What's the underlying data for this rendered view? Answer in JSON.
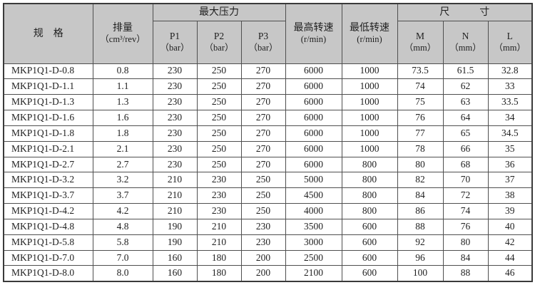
{
  "colors": {
    "header_bg": "#c7c7c7",
    "grid_border": "#4f4f4f",
    "outer_border": "#3a3a3a",
    "text": "#1f1f1f",
    "row_bg": "#ffffff"
  },
  "table": {
    "header": {
      "spec": "规　格",
      "displacement": {
        "line1": "排量",
        "line2": "（cm³/rev）"
      },
      "max_pressure_group": "最大压力",
      "p1": {
        "line1": "P1",
        "line2": "（bar）"
      },
      "p2": {
        "line1": "P2",
        "line2": "（bar）"
      },
      "p3": {
        "line1": "P3",
        "line2": "（bar）"
      },
      "max_speed": {
        "line1": "最高转速",
        "line2": "(r/min)"
      },
      "min_speed": {
        "line1": "最低转速",
        "line2": "(r/min)"
      },
      "dimensions_group": "尺　　　寸",
      "m": {
        "line1": "M",
        "line2": "（mm）"
      },
      "n": {
        "line1": "N",
        "line2": "（mm）"
      },
      "l": {
        "line1": "L",
        "line2": "（mm）"
      }
    },
    "column_order": [
      "spec",
      "displacement",
      "p1",
      "p2",
      "p3",
      "max_speed",
      "min_speed",
      "m",
      "n",
      "l"
    ],
    "rows": [
      {
        "spec": "MKP1Q1-D-0.8",
        "displacement": "0.8",
        "p1": "230",
        "p2": "250",
        "p3": "270",
        "max_speed": "6000",
        "min_speed": "1000",
        "m": "73.5",
        "n": "61.5",
        "l": "32.8"
      },
      {
        "spec": "MKP1Q1-D-1.1",
        "displacement": "1.1",
        "p1": "230",
        "p2": "250",
        "p3": "270",
        "max_speed": "6000",
        "min_speed": "1000",
        "m": "74",
        "n": "62",
        "l": "33"
      },
      {
        "spec": "MKP1Q1-D-1.3",
        "displacement": "1.3",
        "p1": "230",
        "p2": "250",
        "p3": "270",
        "max_speed": "6000",
        "min_speed": "1000",
        "m": "75",
        "n": "63",
        "l": "33.5"
      },
      {
        "spec": "MKP1Q1-D-1.6",
        "displacement": "1.6",
        "p1": "230",
        "p2": "250",
        "p3": "270",
        "max_speed": "6000",
        "min_speed": "1000",
        "m": "76",
        "n": "64",
        "l": "34"
      },
      {
        "spec": "MKP1Q1-D-1.8",
        "displacement": "1.8",
        "p1": "230",
        "p2": "250",
        "p3": "270",
        "max_speed": "6000",
        "min_speed": "1000",
        "m": "77",
        "n": "65",
        "l": "34.5"
      },
      {
        "spec": "MKP1Q1-D-2.1",
        "displacement": "2.1",
        "p1": "230",
        "p2": "250",
        "p3": "270",
        "max_speed": "6000",
        "min_speed": "1000",
        "m": "78",
        "n": "66",
        "l": "35"
      },
      {
        "spec": "MKP1Q1-D-2.7",
        "displacement": "2.7",
        "p1": "230",
        "p2": "250",
        "p3": "270",
        "max_speed": "6000",
        "min_speed": "800",
        "m": "80",
        "n": "68",
        "l": "36"
      },
      {
        "spec": "MKP1Q1-D-3.2",
        "displacement": "3.2",
        "p1": "210",
        "p2": "230",
        "p3": "250",
        "max_speed": "5000",
        "min_speed": "800",
        "m": "82",
        "n": "70",
        "l": "37"
      },
      {
        "spec": "MKP1Q1-D-3.7",
        "displacement": "3.7",
        "p1": "210",
        "p2": "230",
        "p3": "250",
        "max_speed": "4500",
        "min_speed": "800",
        "m": "84",
        "n": "72",
        "l": "38"
      },
      {
        "spec": "MKP1Q1-D-4.2",
        "displacement": "4.2",
        "p1": "210",
        "p2": "230",
        "p3": "250",
        "max_speed": "4000",
        "min_speed": "800",
        "m": "86",
        "n": "74",
        "l": "39"
      },
      {
        "spec": "MKP1Q1-D-4.8",
        "displacement": "4.8",
        "p1": "190",
        "p2": "210",
        "p3": "230",
        "max_speed": "3500",
        "min_speed": "600",
        "m": "88",
        "n": "76",
        "l": "40"
      },
      {
        "spec": "MKP1Q1-D-5.8",
        "displacement": "5.8",
        "p1": "190",
        "p2": "210",
        "p3": "230",
        "max_speed": "3000",
        "min_speed": "600",
        "m": "92",
        "n": "80",
        "l": "42"
      },
      {
        "spec": "MKP1Q1-D-7.0",
        "displacement": "7.0",
        "p1": "160",
        "p2": "180",
        "p3": "200",
        "max_speed": "2500",
        "min_speed": "600",
        "m": "96",
        "n": "84",
        "l": "44"
      },
      {
        "spec": "MKP1Q1-D-8.0",
        "displacement": "8.0",
        "p1": "160",
        "p2": "180",
        "p3": "200",
        "max_speed": "2100",
        "min_speed": "600",
        "m": "100",
        "n": "88",
        "l": "46"
      }
    ]
  }
}
